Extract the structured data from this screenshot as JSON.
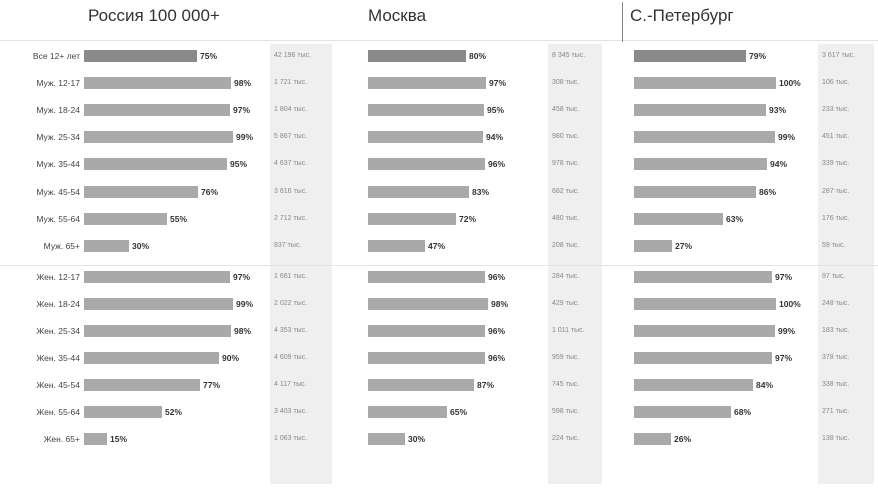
{
  "chart_data": {
    "type": "bar",
    "panels": [
      {
        "title": "Россия 100 000+",
        "categories": [
          "Все 12+ лет",
          "Муж. 12-17",
          "Муж. 18-24",
          "Муж. 25-34",
          "Муж. 35-44",
          "Муж. 45-54",
          "Муж. 55-64",
          "Муж. 65+",
          "Жен. 12-17",
          "Жен. 18-24",
          "Жен. 25-34",
          "Жен. 35-44",
          "Жен. 45-54",
          "Жен. 55-64",
          "Жен. 65+"
        ],
        "values": [
          75,
          98,
          97,
          99,
          95,
          76,
          55,
          30,
          97,
          99,
          98,
          90,
          77,
          52,
          15
        ],
        "value_labels": [
          "75%",
          "98%",
          "97%",
          "99%",
          "95%",
          "76%",
          "55%",
          "30%",
          "97%",
          "99%",
          "98%",
          "90%",
          "77%",
          "52%",
          "15%"
        ],
        "audience_labels": [
          "42 196 тыс.",
          "1 721 тыс.",
          "1 804 тыс.",
          "5 867 тыс.",
          "4 637 тыс.",
          "3 616 тыс.",
          "2 712 тыс.",
          "837 тыс.",
          "1 661 тыс.",
          "2 022 тыс.",
          "4 353 тыс.",
          "4 609 тыс.",
          "4 117 тыс.",
          "3 403 тыс.",
          "1 063 тыс."
        ]
      },
      {
        "title": "Москва",
        "categories": [
          "Все 12+ лет",
          "Муж. 12-17",
          "Муж. 18-24",
          "Муж. 25-34",
          "Муж. 35-44",
          "Муж. 45-54",
          "Муж. 55-64",
          "Муж. 65+",
          "Жен. 12-17",
          "Жен. 18-24",
          "Жен. 25-34",
          "Жен. 35-44",
          "Жен. 45-54",
          "Жен. 55-64",
          "Жен. 65+"
        ],
        "values": [
          80,
          97,
          95,
          94,
          96,
          83,
          72,
          47,
          96,
          98,
          96,
          96,
          87,
          65,
          30
        ],
        "value_labels": [
          "80%",
          "97%",
          "95%",
          "94%",
          "96%",
          "83%",
          "72%",
          "47%",
          "96%",
          "98%",
          "96%",
          "96%",
          "87%",
          "65%",
          "30%"
        ],
        "audience_labels": [
          "8 345 тыс.",
          "308 тыс.",
          "458 тыс.",
          "980 тыс.",
          "978 тыс.",
          "682 тыс.",
          "480 тыс.",
          "208 тыс.",
          "284 тыс.",
          "429 тыс.",
          "1 011 тыс.",
          "959 тыс.",
          "745 тыс.",
          "598 тыс.",
          "224 тыс."
        ]
      },
      {
        "title": "С.-Петербург",
        "categories": [
          "Все 12+ лет",
          "Муж. 12-17",
          "Муж. 18-24",
          "Муж. 25-34",
          "Муж. 35-44",
          "Муж. 45-54",
          "Муж. 55-64",
          "Муж. 65+",
          "Жен. 12-17",
          "Жен. 18-24",
          "Жен. 25-34",
          "Жен. 35-44",
          "Жен. 45-54",
          "Жен. 55-64",
          "Жен. 65+"
        ],
        "values": [
          79,
          100,
          93,
          99,
          94,
          86,
          63,
          27,
          97,
          100,
          99,
          97,
          84,
          68,
          26
        ],
        "value_labels": [
          "79%",
          "100%",
          "93%",
          "99%",
          "94%",
          "86%",
          "63%",
          "27%",
          "97%",
          "100%",
          "99%",
          "97%",
          "84%",
          "68%",
          "26%"
        ],
        "audience_labels": [
          "3 617 тыс.",
          "106 тыс.",
          "233 тыс.",
          "451 тыс.",
          "339 тыс.",
          "287 тыс.",
          "176 тыс.",
          "59 тыс.",
          "97 тыс.",
          "248 тыс.",
          "183 тыс.",
          "378 тыс.",
          "338 тыс.",
          "271 тыс.",
          "138 тыс."
        ]
      }
    ],
    "xlim": [
      0,
      100
    ],
    "grid": false
  }
}
